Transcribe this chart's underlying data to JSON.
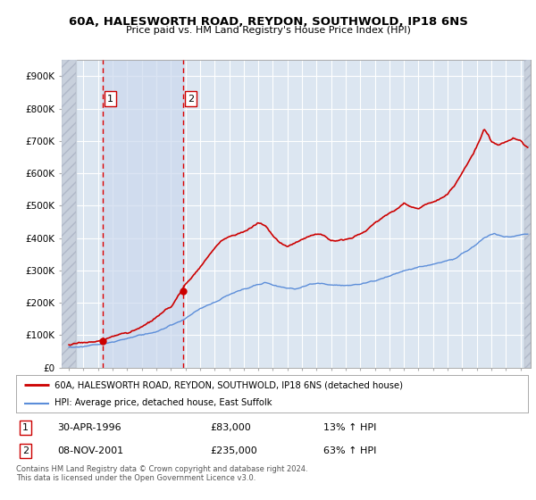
{
  "title": "60A, HALESWORTH ROAD, REYDON, SOUTHWOLD, IP18 6NS",
  "subtitle": "Price paid vs. HM Land Registry's House Price Index (HPI)",
  "legend_line1": "60A, HALESWORTH ROAD, REYDON, SOUTHWOLD, IP18 6NS (detached house)",
  "legend_line2": "HPI: Average price, detached house, East Suffolk",
  "footer": "Contains HM Land Registry data © Crown copyright and database right 2024.\nThis data is licensed under the Open Government Licence v3.0.",
  "sale1_date": "30-APR-1996",
  "sale1_price": 83000,
  "sale1_hpi_text": "13% ↑ HPI",
  "sale2_date": "08-NOV-2001",
  "sale2_price": 235000,
  "sale2_hpi_text": "63% ↑ HPI",
  "sale1_x": 1996.33,
  "sale2_x": 2001.85,
  "background_color": "#ffffff",
  "plot_bg_color": "#dce6f1",
  "shaded_region_color": "#d0ddf0",
  "grid_color": "#ffffff",
  "red_line_color": "#cc0000",
  "blue_line_color": "#5b8dd9",
  "sale_dot_color": "#cc0000",
  "dashed_line_color": "#dd0000",
  "hatch_edge_color": "#b0b8c8",
  "xmin": 1993.5,
  "xmax": 2025.7,
  "ymin": 0,
  "ymax": 950000,
  "yticks": [
    0,
    100000,
    200000,
    300000,
    400000,
    500000,
    600000,
    700000,
    800000,
    900000
  ],
  "ylabels": [
    "£0",
    "£100K",
    "£200K",
    "£300K",
    "£400K",
    "£500K",
    "£600K",
    "£700K",
    "£800K",
    "£900K"
  ]
}
